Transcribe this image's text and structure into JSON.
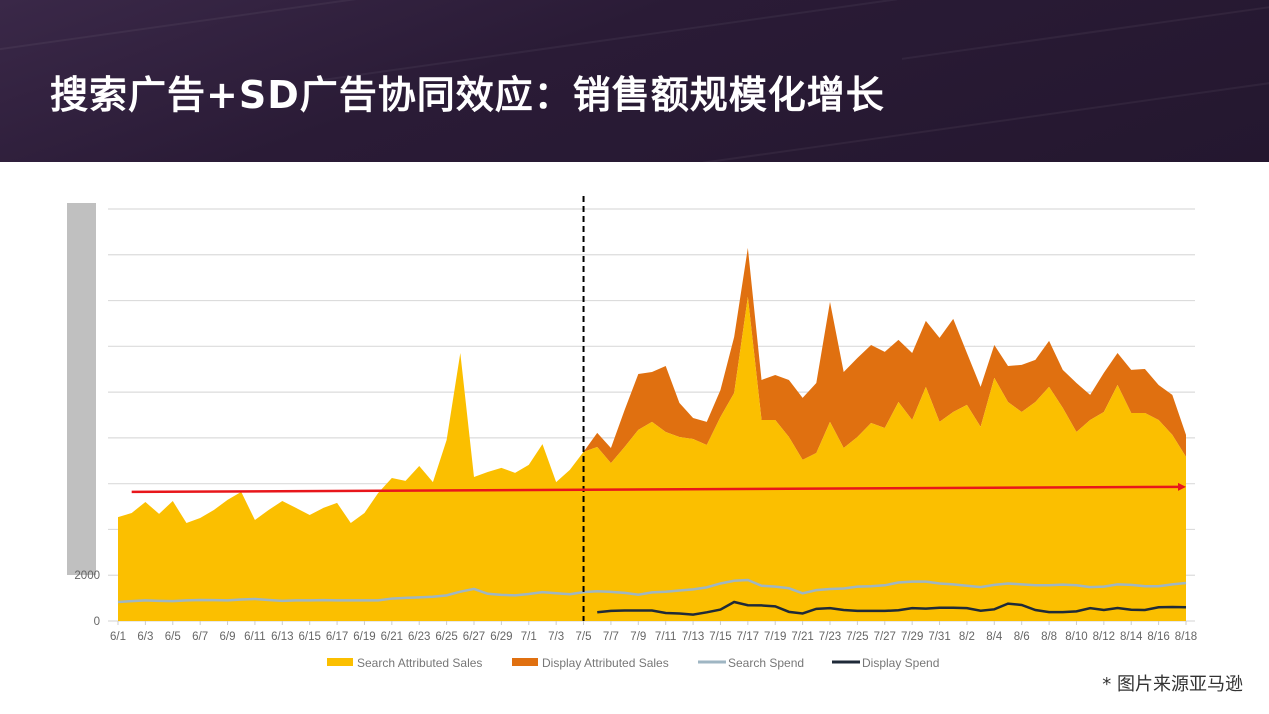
{
  "header": {
    "title_part1": "搜索广告+SD广告协同效应：",
    "title_part2": "销售额规模化增长"
  },
  "footnote": "* 图片来源亚马逊",
  "colors": {
    "header_bg": "#2a1b36",
    "search_sales": "#fbbf00",
    "display_sales": "#e07010",
    "search_spend": "#9fb6c3",
    "display_spend": "#1f2a38",
    "reference_line": "#e8161b",
    "divider_line": "#000000",
    "axis_mask": "#c0c0c0"
  },
  "chart_data": {
    "type": "area",
    "stacked": true,
    "ylim": [
      0,
      18000
    ],
    "y_ticks": [
      0,
      2000,
      4000,
      6000,
      8000,
      10000,
      12000,
      14000,
      16000,
      18000
    ],
    "y_tick_labels_visible": [
      "0",
      "2000"
    ],
    "grid": true,
    "legend_placement": "bottom",
    "x": [
      "6/1",
      "6/2",
      "6/3",
      "6/4",
      "6/5",
      "6/6",
      "6/7",
      "6/8",
      "6/9",
      "6/10",
      "6/11",
      "6/12",
      "6/13",
      "6/14",
      "6/15",
      "6/16",
      "6/17",
      "6/18",
      "6/19",
      "6/20",
      "6/21",
      "6/22",
      "6/23",
      "6/24",
      "6/25",
      "6/26",
      "6/27",
      "6/28",
      "6/29",
      "6/30",
      "7/1",
      "7/2",
      "7/3",
      "7/4",
      "7/5",
      "7/6",
      "7/7",
      "7/8",
      "7/9",
      "7/10",
      "7/11",
      "7/12",
      "7/13",
      "7/14",
      "7/15",
      "7/16",
      "7/17",
      "7/18",
      "7/19",
      "7/20",
      "7/21",
      "7/22",
      "7/23",
      "7/24",
      "7/25",
      "7/26",
      "7/27",
      "7/28",
      "7/29",
      "7/30",
      "7/31",
      "8/1",
      "8/2",
      "8/3",
      "8/4",
      "8/5",
      "8/6",
      "8/7",
      "8/8",
      "8/9",
      "8/10",
      "8/11",
      "8/12",
      "8/13",
      "8/14",
      "8/15",
      "8/16",
      "8/17",
      "8/18"
    ],
    "x_tick_labels": [
      "6/1",
      "6/3",
      "6/5",
      "6/7",
      "6/9",
      "6/11",
      "6/13",
      "6/15",
      "6/17",
      "6/19",
      "6/21",
      "6/23",
      "6/25",
      "6/27",
      "6/29",
      "7/1",
      "7/3",
      "7/5",
      "7/7",
      "7/9",
      "7/11",
      "7/13",
      "7/15",
      "7/17",
      "7/19",
      "7/21",
      "7/23",
      "7/25",
      "7/27",
      "7/29",
      "7/31",
      "8/2",
      "8/4",
      "8/6",
      "8/8",
      "8/10",
      "8/12",
      "8/14",
      "8/16",
      "8/18"
    ],
    "series": [
      {
        "name": "Search Attributed Sales",
        "kind": "area",
        "values": [
          4540,
          4720,
          5200,
          4680,
          5240,
          4280,
          4500,
          4850,
          5290,
          5640,
          4410,
          4850,
          5240,
          4940,
          4630,
          4940,
          5160,
          4280,
          4720,
          5590,
          6250,
          6120,
          6770,
          6070,
          7910,
          11710,
          6290,
          6510,
          6690,
          6470,
          6820,
          7730,
          6070,
          6600,
          7390,
          7600,
          6900,
          7600,
          8350,
          8700,
          8260,
          8040,
          7950,
          7690,
          8910,
          9960,
          14160,
          8780,
          8780,
          8040,
          7040,
          7340,
          8700,
          7560,
          8040,
          8650,
          8430,
          9570,
          8780,
          10230,
          8700,
          9130,
          9440,
          8480,
          10620,
          9570,
          9130,
          9570,
          10230,
          9310,
          8260,
          8780,
          9130,
          10310,
          9090,
          9090,
          8780,
          8130,
          7170
        ]
      },
      {
        "name": "Display Attributed Sales",
        "kind": "area",
        "values": [
          0,
          0,
          0,
          0,
          0,
          0,
          0,
          0,
          0,
          0,
          0,
          0,
          0,
          0,
          0,
          0,
          0,
          0,
          0,
          0,
          0,
          0,
          0,
          0,
          0,
          0,
          0,
          0,
          0,
          0,
          0,
          0,
          0,
          0,
          0,
          620,
          660,
          1620,
          2440,
          2180,
          2880,
          1490,
          920,
          1010,
          1180,
          2450,
          2140,
          1750,
          1970,
          2490,
          2710,
          3060,
          5240,
          3320,
          3450,
          3410,
          3330,
          2710,
          2930,
          2880,
          3670,
          4070,
          2270,
          1750,
          1440,
          1570,
          2060,
          1840,
          2010,
          1660,
          2140,
          1100,
          1710,
          1400,
          1880,
          1920,
          1530,
          1750,
          960
        ]
      },
      {
        "name": "Search Spend",
        "kind": "line",
        "values": [
          830,
          870,
          900,
          880,
          870,
          900,
          920,
          910,
          900,
          940,
          960,
          920,
          880,
          900,
          900,
          910,
          900,
          900,
          900,
          900,
          980,
          1010,
          1030,
          1060,
          1120,
          1280,
          1400,
          1190,
          1140,
          1120,
          1180,
          1260,
          1210,
          1170,
          1260,
          1300,
          1270,
          1230,
          1150,
          1250,
          1280,
          1330,
          1380,
          1470,
          1640,
          1760,
          1790,
          1540,
          1500,
          1430,
          1210,
          1350,
          1400,
          1420,
          1500,
          1520,
          1560,
          1680,
          1720,
          1720,
          1640,
          1600,
          1540,
          1480,
          1580,
          1640,
          1600,
          1560,
          1560,
          1590,
          1560,
          1480,
          1500,
          1600,
          1580,
          1520,
          1520,
          1600,
          1660
        ]
      },
      {
        "name": "Display Spend",
        "kind": "line",
        "values": [
          null,
          null,
          null,
          null,
          null,
          null,
          null,
          null,
          null,
          null,
          null,
          null,
          null,
          null,
          null,
          null,
          null,
          null,
          null,
          null,
          null,
          null,
          null,
          null,
          null,
          null,
          null,
          null,
          null,
          null,
          null,
          null,
          null,
          null,
          null,
          380,
          440,
          460,
          460,
          460,
          350,
          330,
          280,
          380,
          500,
          830,
          690,
          680,
          640,
          400,
          330,
          530,
          560,
          480,
          440,
          440,
          440,
          470,
          560,
          540,
          580,
          580,
          560,
          450,
          510,
          760,
          700,
          480,
          390,
          390,
          420,
          560,
          480,
          570,
          490,
          480,
          600,
          610,
          600
        ]
      }
    ],
    "annotations": {
      "reference_line": {
        "x_start": "6/2",
        "x_end": "8/18",
        "y_start": 5640,
        "y_end": 5860,
        "arrow": true
      },
      "divider": {
        "x": "7/5",
        "style": "dashed"
      }
    }
  }
}
